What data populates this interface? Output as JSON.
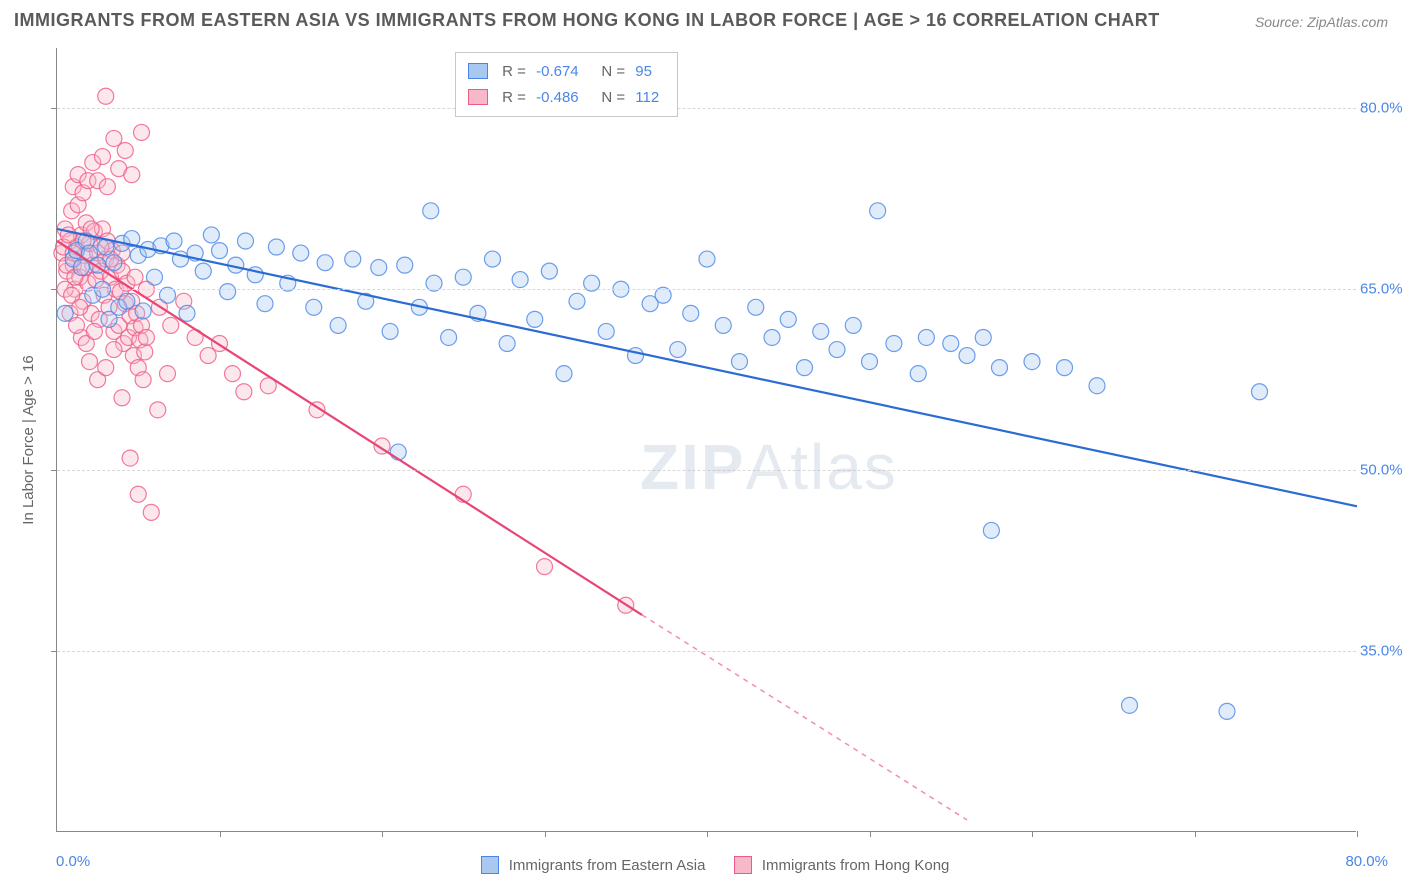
{
  "title": "IMMIGRANTS FROM EASTERN ASIA VS IMMIGRANTS FROM HONG KONG IN LABOR FORCE | AGE > 16 CORRELATION CHART",
  "source": "Source: ZipAtlas.com",
  "watermark_bold": "ZIP",
  "watermark_thin": "Atlas",
  "y_axis_title": "In Labor Force | Age > 16",
  "x_label_min": "0.0%",
  "x_label_max": "80.0%",
  "chart": {
    "type": "scatter",
    "xlim": [
      0,
      80
    ],
    "ylim": [
      20,
      85
    ],
    "y_ticks": [
      35.0,
      50.0,
      65.0,
      80.0
    ],
    "y_tick_labels": [
      "35.0%",
      "50.0%",
      "65.0%",
      "80.0%"
    ],
    "x_ticks": [
      10,
      20,
      30,
      40,
      50,
      60,
      70,
      80
    ],
    "grid_color": "#d8d8d8",
    "background_color": "#ffffff",
    "marker_radius": 8,
    "marker_opacity": 0.35,
    "line_width": 2.2,
    "series": [
      {
        "name": "Immigrants from Eastern Asia",
        "color_fill": "#a9c8f0",
        "color_stroke": "#4a86e8",
        "line_color": "#2b6cd4",
        "R": "-0.674",
        "N": "95",
        "regression": {
          "x1": 0,
          "y1": 70.0,
          "x2": 80,
          "y2": 47.0,
          "dash_after_x": 80
        },
        "points": [
          [
            0.5,
            63.0
          ],
          [
            1.0,
            67.5
          ],
          [
            1.2,
            68.2
          ],
          [
            1.5,
            66.8
          ],
          [
            1.8,
            69.0
          ],
          [
            2.0,
            68.0
          ],
          [
            2.2,
            64.5
          ],
          [
            2.5,
            67.0
          ],
          [
            2.8,
            65.0
          ],
          [
            3.0,
            68.5
          ],
          [
            3.2,
            62.5
          ],
          [
            3.5,
            67.2
          ],
          [
            3.8,
            63.5
          ],
          [
            4.0,
            68.8
          ],
          [
            4.3,
            64.0
          ],
          [
            4.6,
            69.2
          ],
          [
            5.0,
            67.8
          ],
          [
            5.3,
            63.2
          ],
          [
            5.6,
            68.3
          ],
          [
            6.0,
            66.0
          ],
          [
            6.4,
            68.6
          ],
          [
            6.8,
            64.5
          ],
          [
            7.2,
            69.0
          ],
          [
            7.6,
            67.5
          ],
          [
            8.0,
            63.0
          ],
          [
            8.5,
            68.0
          ],
          [
            9.0,
            66.5
          ],
          [
            9.5,
            69.5
          ],
          [
            10.0,
            68.2
          ],
          [
            10.5,
            64.8
          ],
          [
            11.0,
            67.0
          ],
          [
            11.6,
            69.0
          ],
          [
            12.2,
            66.2
          ],
          [
            12.8,
            63.8
          ],
          [
            13.5,
            68.5
          ],
          [
            14.2,
            65.5
          ],
          [
            15.0,
            68.0
          ],
          [
            15.8,
            63.5
          ],
          [
            16.5,
            67.2
          ],
          [
            17.3,
            62.0
          ],
          [
            18.2,
            67.5
          ],
          [
            19.0,
            64.0
          ],
          [
            19.8,
            66.8
          ],
          [
            20.5,
            61.5
          ],
          [
            21,
            51.5
          ],
          [
            21.4,
            67.0
          ],
          [
            22.3,
            63.5
          ],
          [
            23.0,
            71.5
          ],
          [
            23.2,
            65.5
          ],
          [
            24.1,
            61.0
          ],
          [
            25.0,
            66.0
          ],
          [
            25.9,
            63.0
          ],
          [
            26.8,
            67.5
          ],
          [
            27.7,
            60.5
          ],
          [
            28.5,
            65.8
          ],
          [
            29.4,
            62.5
          ],
          [
            30.3,
            66.5
          ],
          [
            31.2,
            58.0
          ],
          [
            32.0,
            64.0
          ],
          [
            32.9,
            65.5
          ],
          [
            33.8,
            61.5
          ],
          [
            34.7,
            65.0
          ],
          [
            35.6,
            59.5
          ],
          [
            36.5,
            63.8
          ],
          [
            37.3,
            64.5
          ],
          [
            38.2,
            60.0
          ],
          [
            39.0,
            63.0
          ],
          [
            40.0,
            67.5
          ],
          [
            41.0,
            62.0
          ],
          [
            42.0,
            59.0
          ],
          [
            43.0,
            63.5
          ],
          [
            44.0,
            61.0
          ],
          [
            45.0,
            62.5
          ],
          [
            46.0,
            58.5
          ],
          [
            47.0,
            61.5
          ],
          [
            48.0,
            60.0
          ],
          [
            49.0,
            62.0
          ],
          [
            50.0,
            59.0
          ],
          [
            50.5,
            71.5
          ],
          [
            51.5,
            60.5
          ],
          [
            53.0,
            58.0
          ],
          [
            53.5,
            61.0
          ],
          [
            55.0,
            60.5
          ],
          [
            56.0,
            59.5
          ],
          [
            57.0,
            61.0
          ],
          [
            57.5,
            45.0
          ],
          [
            58.0,
            58.5
          ],
          [
            60.0,
            59.0
          ],
          [
            62.0,
            58.5
          ],
          [
            64.0,
            57.0
          ],
          [
            66.0,
            30.5
          ],
          [
            72.0,
            30.0
          ],
          [
            74.0,
            56.5
          ]
        ]
      },
      {
        "name": "Immigrants from Hong Kong",
        "color_fill": "#f7b9ca",
        "color_stroke": "#ef5a85",
        "line_color": "#e84575",
        "R": "-0.486",
        "N": "112",
        "regression": {
          "x1": 0,
          "y1": 69.0,
          "x2": 36,
          "y2": 38.0,
          "dash_after_x": 36,
          "x3": 56,
          "y3": 21.0
        },
        "points": [
          [
            0.3,
            68.0
          ],
          [
            0.5,
            70.0
          ],
          [
            0.6,
            66.5
          ],
          [
            0.8,
            69.0
          ],
          [
            0.9,
            71.5
          ],
          [
            1.0,
            67.0
          ],
          [
            1.1,
            65.0
          ],
          [
            1.2,
            68.5
          ],
          [
            1.3,
            72.0
          ],
          [
            1.4,
            66.0
          ],
          [
            1.5,
            69.5
          ],
          [
            1.6,
            64.0
          ],
          [
            1.7,
            67.8
          ],
          [
            1.8,
            70.5
          ],
          [
            1.9,
            65.5
          ],
          [
            2.0,
            68.8
          ],
          [
            2.1,
            63.0
          ],
          [
            2.2,
            67.0
          ],
          [
            2.3,
            69.8
          ],
          [
            2.4,
            65.8
          ],
          [
            2.5,
            68.0
          ],
          [
            2.6,
            62.5
          ],
          [
            2.7,
            66.5
          ],
          [
            2.8,
            70.0
          ],
          [
            2.9,
            64.5
          ],
          [
            3.0,
            67.5
          ],
          [
            3.1,
            69.0
          ],
          [
            3.2,
            63.5
          ],
          [
            3.3,
            66.0
          ],
          [
            3.4,
            68.2
          ],
          [
            3.5,
            61.5
          ],
          [
            3.6,
            65.0
          ],
          [
            3.7,
            67.0
          ],
          [
            3.8,
            62.0
          ],
          [
            3.9,
            64.8
          ],
          [
            4.0,
            66.5
          ],
          [
            4.1,
            60.5
          ],
          [
            4.2,
            63.8
          ],
          [
            4.3,
            65.5
          ],
          [
            4.4,
            61.0
          ],
          [
            4.5,
            62.8
          ],
          [
            4.6,
            64.0
          ],
          [
            4.7,
            59.5
          ],
          [
            4.8,
            61.8
          ],
          [
            4.9,
            63.0
          ],
          [
            5.0,
            58.5
          ],
          [
            5.1,
            60.8
          ],
          [
            5.2,
            62.0
          ],
          [
            5.3,
            57.5
          ],
          [
            5.4,
            59.8
          ],
          [
            5.5,
            61.0
          ],
          [
            1.0,
            73.5
          ],
          [
            1.3,
            74.5
          ],
          [
            1.6,
            73.0
          ],
          [
            1.9,
            74.0
          ],
          [
            2.2,
            75.5
          ],
          [
            2.5,
            74.0
          ],
          [
            2.8,
            76.0
          ],
          [
            3.1,
            73.5
          ],
          [
            3.5,
            77.5
          ],
          [
            3.8,
            75.0
          ],
          [
            4.2,
            76.5
          ],
          [
            4.6,
            74.5
          ],
          [
            3.0,
            81.0
          ],
          [
            5.2,
            78.0
          ],
          [
            4.0,
            56.0
          ],
          [
            4.5,
            51.0
          ],
          [
            5.0,
            48.0
          ],
          [
            5.8,
            46.5
          ],
          [
            6.2,
            55.0
          ],
          [
            6.8,
            58.0
          ],
          [
            1.5,
            61.0
          ],
          [
            2.0,
            59.0
          ],
          [
            2.5,
            57.5
          ],
          [
            3.0,
            58.5
          ],
          [
            3.5,
            60.0
          ],
          [
            0.8,
            63.0
          ],
          [
            1.2,
            62.0
          ],
          [
            1.8,
            60.5
          ],
          [
            2.3,
            61.5
          ],
          [
            0.5,
            65.0
          ],
          [
            0.9,
            64.5
          ],
          [
            1.4,
            63.5
          ],
          [
            0.6,
            67.0
          ],
          [
            1.1,
            66.0
          ],
          [
            1.7,
            66.8
          ],
          [
            0.4,
            68.5
          ],
          [
            0.7,
            69.5
          ],
          [
            1.0,
            68.0
          ],
          [
            1.6,
            69.0
          ],
          [
            2.1,
            70.0
          ],
          [
            2.7,
            68.5
          ],
          [
            3.3,
            67.5
          ],
          [
            4.0,
            68.0
          ],
          [
            4.8,
            66.0
          ],
          [
            5.5,
            65.0
          ],
          [
            6.3,
            63.5
          ],
          [
            7.0,
            62.0
          ],
          [
            7.8,
            64.0
          ],
          [
            8.5,
            61.0
          ],
          [
            9.3,
            59.5
          ],
          [
            10.0,
            60.5
          ],
          [
            10.8,
            58.0
          ],
          [
            11.5,
            56.5
          ],
          [
            13.0,
            57.0
          ],
          [
            16.0,
            55.0
          ],
          [
            20.0,
            52.0
          ],
          [
            25.0,
            48.0
          ],
          [
            30.0,
            42.0
          ],
          [
            35.0,
            38.8
          ]
        ]
      }
    ]
  },
  "bottom_legend": [
    {
      "label": "Immigrants from Eastern Asia",
      "fill": "#a9c8f0",
      "stroke": "#4a86e8"
    },
    {
      "label": "Immigrants from Hong Kong",
      "fill": "#f7b9ca",
      "stroke": "#ef5a85"
    }
  ],
  "top_legend_labels": {
    "R": "R =",
    "N": "N ="
  }
}
